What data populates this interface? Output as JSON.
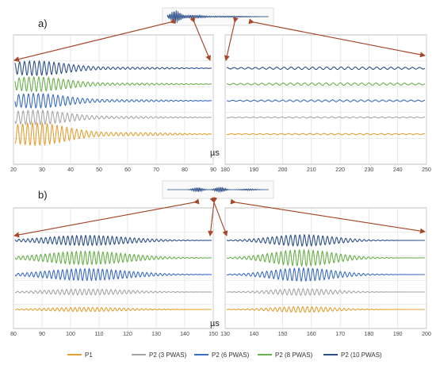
{
  "figure": {
    "unit_label": "µs",
    "colors": {
      "P1": "#e3a033",
      "P2_3": "#a6a6a6",
      "P2_6": "#3b6cc3",
      "P2_8": "#6ab04c",
      "P2_10": "#2c4f8a",
      "arrow": "#a8472a",
      "grid": "#d9d9d9",
      "frame": "#bfbfbf"
    },
    "legend": [
      {
        "label": "P1",
        "color_key": "P1"
      },
      {
        "label": "P2 (3 PWAS)",
        "color_key": "P2_3"
      },
      {
        "label": "P2 (6 PWAS)",
        "color_key": "P2_6"
      },
      {
        "label": "P2 (8 PWAS)",
        "color_key": "P2_8"
      },
      {
        "label": "P2 (10 PWAS)",
        "color_key": "P2_10"
      }
    ]
  },
  "chart_data": [
    {
      "panel": "a)",
      "type": "line",
      "subplot": "left",
      "xlim": [
        20,
        90
      ],
      "xticks": [
        "20",
        "30",
        "40",
        "50",
        "60",
        "70",
        "80",
        "90"
      ],
      "series_order_top_to_bottom": [
        "P2_10",
        "P2_8",
        "P2_6",
        "P2_3",
        "P1"
      ]
    },
    {
      "panel": "a)",
      "type": "line",
      "subplot": "right",
      "xlim": [
        180,
        250
      ],
      "xticks": [
        "180",
        "190",
        "200",
        "210",
        "220",
        "230",
        "240",
        "250"
      ],
      "series_order_top_to_bottom": [
        "P2_10",
        "P2_8",
        "P2_6",
        "P2_3",
        "P1"
      ]
    },
    {
      "panel": "b)",
      "type": "line",
      "subplot": "left",
      "xlim": [
        80,
        150
      ],
      "xticks": [
        "80",
        "90",
        "100",
        "110",
        "120",
        "130",
        "140",
        "150"
      ],
      "series_order_top_to_bottom": [
        "P2_10",
        "P2_8",
        "P2_6",
        "P2_3",
        "P1"
      ]
    },
    {
      "panel": "b)",
      "type": "line",
      "subplot": "right",
      "xlim": [
        130,
        200
      ],
      "xticks": [
        "130",
        "140",
        "150",
        "160",
        "170",
        "180",
        "190",
        "200"
      ],
      "series_order_top_to_bottom": [
        "P2_10",
        "P2_8",
        "P2_6",
        "P2_3",
        "P1"
      ]
    }
  ]
}
